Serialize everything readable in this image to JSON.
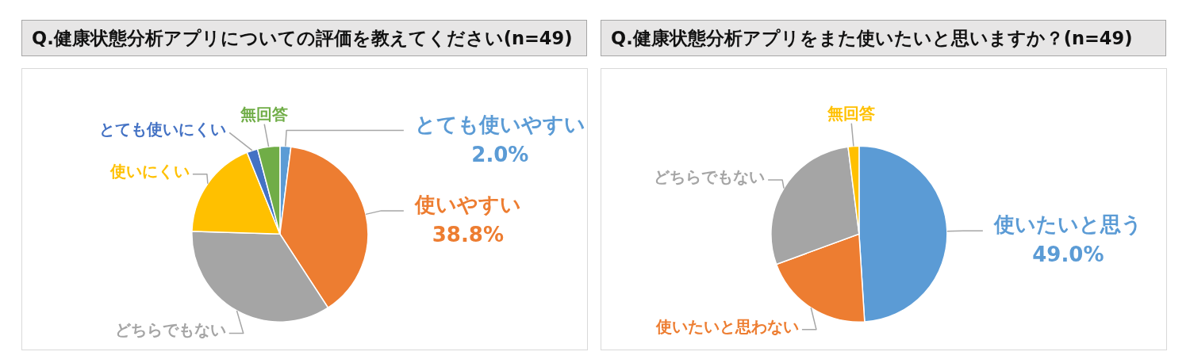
{
  "chart_data": [
    {
      "type": "pie",
      "title": "Q.健康状態分析アプリについての評価を教えてください(n=49)",
      "categories": [
        "とても使いやすい",
        "使いやすい",
        "どちらでもない",
        "使いにくい",
        "とても使いにくい",
        "無回答"
      ],
      "values": [
        2.0,
        38.8,
        34.7,
        18.4,
        2.0,
        4.1
      ],
      "colors": [
        "#5b9bd5",
        "#ed7d31",
        "#a5a5a5",
        "#ffc000",
        "#4472c4",
        "#70ad47"
      ],
      "value_labels": [
        "2.0%",
        "38.8%",
        null,
        null,
        null,
        null
      ]
    },
    {
      "type": "pie",
      "title": "Q.健康状態分析アプリをまた使いたいと思いますか？(n=49)",
      "categories": [
        "使いたいと思う",
        "使いたいと思わない",
        "どちらでもない",
        "無回答"
      ],
      "values": [
        49.0,
        20.4,
        28.6,
        2.0
      ],
      "colors": [
        "#5b9bd5",
        "#ed7d31",
        "#a5a5a5",
        "#ffc000"
      ],
      "value_labels": [
        "49.0%",
        null,
        null,
        null
      ]
    }
  ]
}
